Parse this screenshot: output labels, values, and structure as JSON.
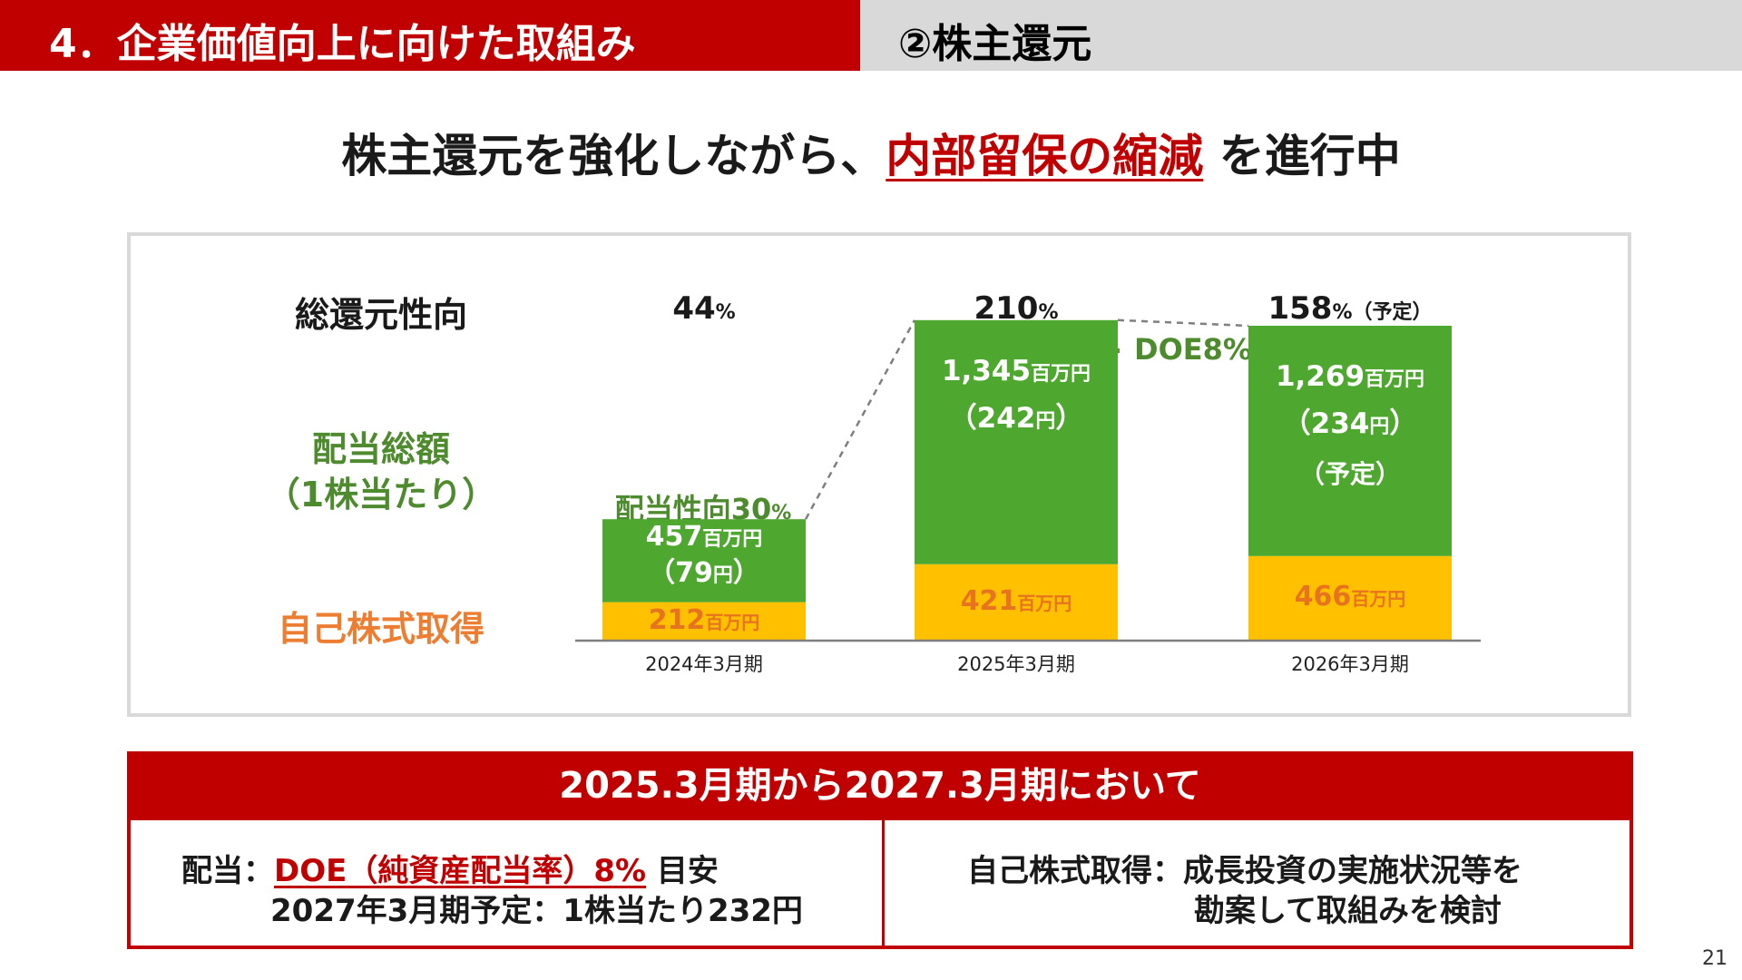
{
  "header": {
    "title": "4．企業価値向上に向けた取組み",
    "subtitle": "②株主還元"
  },
  "headline": {
    "before": "株主還元を強化しながら、",
    "highlight": "内部留保の縮減",
    "after": " を進行中"
  },
  "row_labels": {
    "total_return_ratio": "総還元性向",
    "dividend_line1": "配当総額",
    "dividend_line2": "（1株当たり）",
    "buyback": "自己株式取得"
  },
  "annotations": {
    "payout_ratio_text": "配当性向",
    "payout_ratio_value": "30",
    "payout_ratio_unit": "%",
    "doe": "DOE8%"
  },
  "chart_data": {
    "type": "bar",
    "stacked": true,
    "categories": [
      "2024年3月期",
      "2025年3月期",
      "2026年3月期"
    ],
    "unit": "百万円",
    "series": [
      {
        "name": "自己株式取得",
        "values": [
          212,
          421,
          466
        ],
        "color": "#ffc000"
      },
      {
        "name": "配当総額",
        "values": [
          457,
          1345,
          1269
        ],
        "color": "#4ea72e"
      }
    ],
    "per_share": [
      "79",
      "242",
      "234"
    ],
    "per_share_unit": "円",
    "forecast_label": "（予定）",
    "total_return_ratio": [
      "44",
      "210",
      "158"
    ],
    "total_return_ratio_unit": "%",
    "total_return_forecast": "（予定）",
    "axis_color": "#7f7f7f",
    "connector_color": "#7f7f7f"
  },
  "policy": {
    "heading": "2025.3月期から2027.3月期において",
    "left_label": "配当：",
    "left_highlight": "DOE（純資産配当率）8%",
    "left_after": " 目安",
    "left_line2": "2027年3月期予定：1株当たり232円",
    "right_line1": "自己株式取得：成長投資の実施状況等を",
    "right_line2": "勘案して取組みを検討"
  },
  "page_number": "21"
}
